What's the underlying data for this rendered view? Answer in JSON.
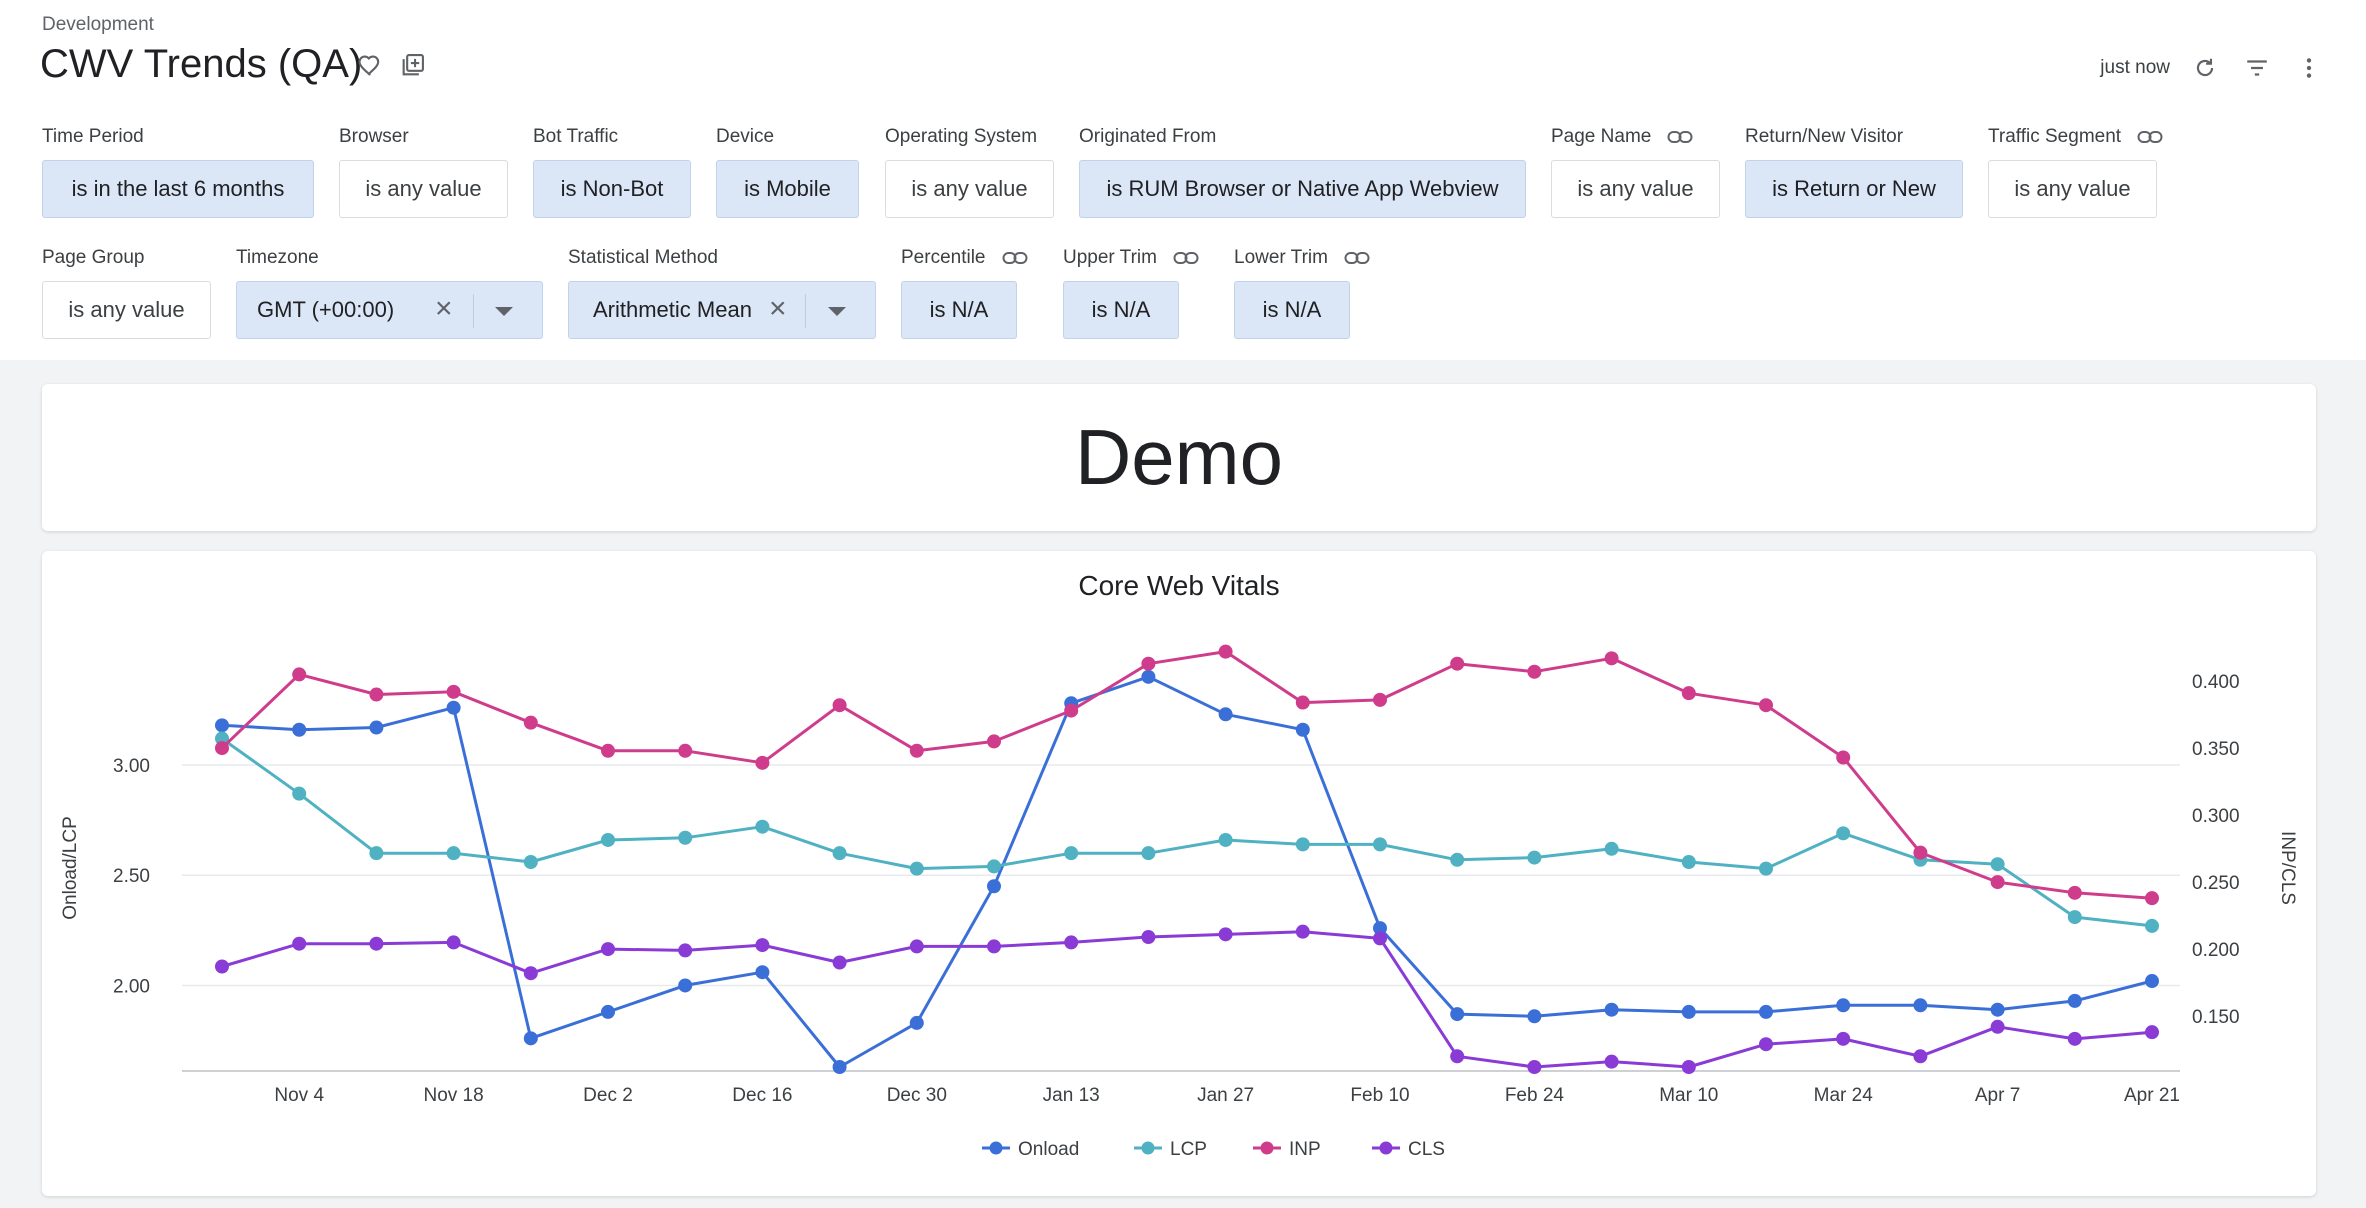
{
  "header": {
    "folder": "Development",
    "title": "CWV Trends (QA)",
    "last_run": "just now"
  },
  "filters": [
    {
      "label": "Time Period",
      "value": "is in the last 6 months",
      "active": true
    },
    {
      "label": "Browser",
      "value": "is any value",
      "active": false
    },
    {
      "label": "Bot Traffic",
      "value": "is Non-Bot",
      "active": true
    },
    {
      "label": "Device",
      "value": "is Mobile",
      "active": true
    },
    {
      "label": "Operating System",
      "value": "is any value",
      "active": false
    },
    {
      "label": "Originated From",
      "value": "is RUM Browser or Native App Webview",
      "active": true
    },
    {
      "label": "Page Name",
      "value": "is any value",
      "active": false
    },
    {
      "label": "Return/New Visitor",
      "value": "is Return or New",
      "active": true
    },
    {
      "label": "Traffic Segment",
      "value": "is any value",
      "active": false
    },
    {
      "label": "Page Group",
      "value": "is any value",
      "active": false
    },
    {
      "label": "Timezone",
      "value": "GMT (+00:00)",
      "active": true
    },
    {
      "label": "Statistical Method",
      "value": "Arithmetic Mean",
      "active": true
    },
    {
      "label": "Percentile",
      "value": "is N/A",
      "active": true
    },
    {
      "label": "Upper Trim",
      "value": "is N/A",
      "active": true
    },
    {
      "label": "Lower Trim",
      "value": "is N/A",
      "active": true
    }
  ],
  "demo_tile": {
    "text": "Demo"
  },
  "colors": {
    "onload": "#3b6fd8",
    "lcp": "#4fb1c2",
    "inp": "#cf3c8c",
    "cls": "#8a3bd6",
    "active_filter": "#dbe6f6"
  },
  "chart_data": {
    "type": "line",
    "title": "Core Web Vitals",
    "xlabel": "",
    "ylabel": "Onload/LCP",
    "y2label": "INP/CLS",
    "x_ticks": [
      "Nov 4",
      "Nov 18",
      "Dec 2",
      "Dec 16",
      "Dec 30",
      "Jan 13",
      "Jan 27",
      "Feb 10",
      "Feb 24",
      "Mar 10",
      "Mar 24",
      "Apr 7",
      "Apr 21"
    ],
    "x": [
      "Oct 28",
      "Nov 4",
      "Nov 11",
      "Nov 18",
      "Nov 25",
      "Dec 2",
      "Dec 9",
      "Dec 16",
      "Dec 23",
      "Dec 30",
      "Jan 6",
      "Jan 13",
      "Jan 20",
      "Jan 27",
      "Feb 3",
      "Feb 10",
      "Feb 17",
      "Feb 24",
      "Mar 3",
      "Mar 10",
      "Mar 17",
      "Mar 24",
      "Mar 31",
      "Apr 7",
      "Apr 14",
      "Apr 21"
    ],
    "y_ticks": [
      "2.00",
      "2.50",
      "3.00"
    ],
    "ylim": [
      1.63,
      3.49
    ],
    "y2_ticks": [
      "0.150",
      "0.200",
      "0.250",
      "0.300",
      "0.350",
      "0.400"
    ],
    "y2lim": [
      0.112,
      0.418
    ],
    "grid": true,
    "legend": "bottom",
    "series": [
      {
        "name": "Onload",
        "axis": "left",
        "color": "#3b6fd8",
        "values": [
          3.18,
          3.16,
          3.17,
          3.26,
          1.76,
          1.88,
          2.0,
          2.06,
          1.63,
          1.83,
          2.45,
          3.28,
          3.4,
          3.23,
          3.16,
          2.26,
          1.87,
          1.86,
          1.89,
          1.88,
          1.88,
          1.91,
          1.91,
          1.89,
          1.93,
          2.02
        ]
      },
      {
        "name": "LCP",
        "axis": "left",
        "color": "#4fb1c2",
        "values": [
          3.12,
          2.87,
          2.6,
          2.6,
          2.56,
          2.66,
          2.67,
          2.72,
          2.6,
          2.53,
          2.54,
          2.6,
          2.6,
          2.66,
          2.64,
          2.64,
          2.57,
          2.58,
          2.62,
          2.56,
          2.53,
          2.69,
          2.57,
          2.55,
          2.31,
          2.27
        ]
      },
      {
        "name": "INP",
        "axis": "right",
        "color": "#cf3c8c",
        "values": [
          0.35,
          0.405,
          0.39,
          0.392,
          0.369,
          0.348,
          0.348,
          0.339,
          0.382,
          0.348,
          0.355,
          0.378,
          0.413,
          0.422,
          0.384,
          0.386,
          0.413,
          0.407,
          0.417,
          0.391,
          0.382,
          0.343,
          0.272,
          0.25,
          0.242,
          0.238
        ]
      },
      {
        "name": "CLS",
        "axis": "right",
        "color": "#8a3bd6",
        "values": [
          0.187,
          0.204,
          0.204,
          0.205,
          0.182,
          0.2,
          0.199,
          0.203,
          0.19,
          0.202,
          0.202,
          0.205,
          0.209,
          0.211,
          0.213,
          0.208,
          0.12,
          0.112,
          0.116,
          0.112,
          0.129,
          0.133,
          0.12,
          0.142,
          0.133,
          0.138
        ]
      }
    ]
  }
}
